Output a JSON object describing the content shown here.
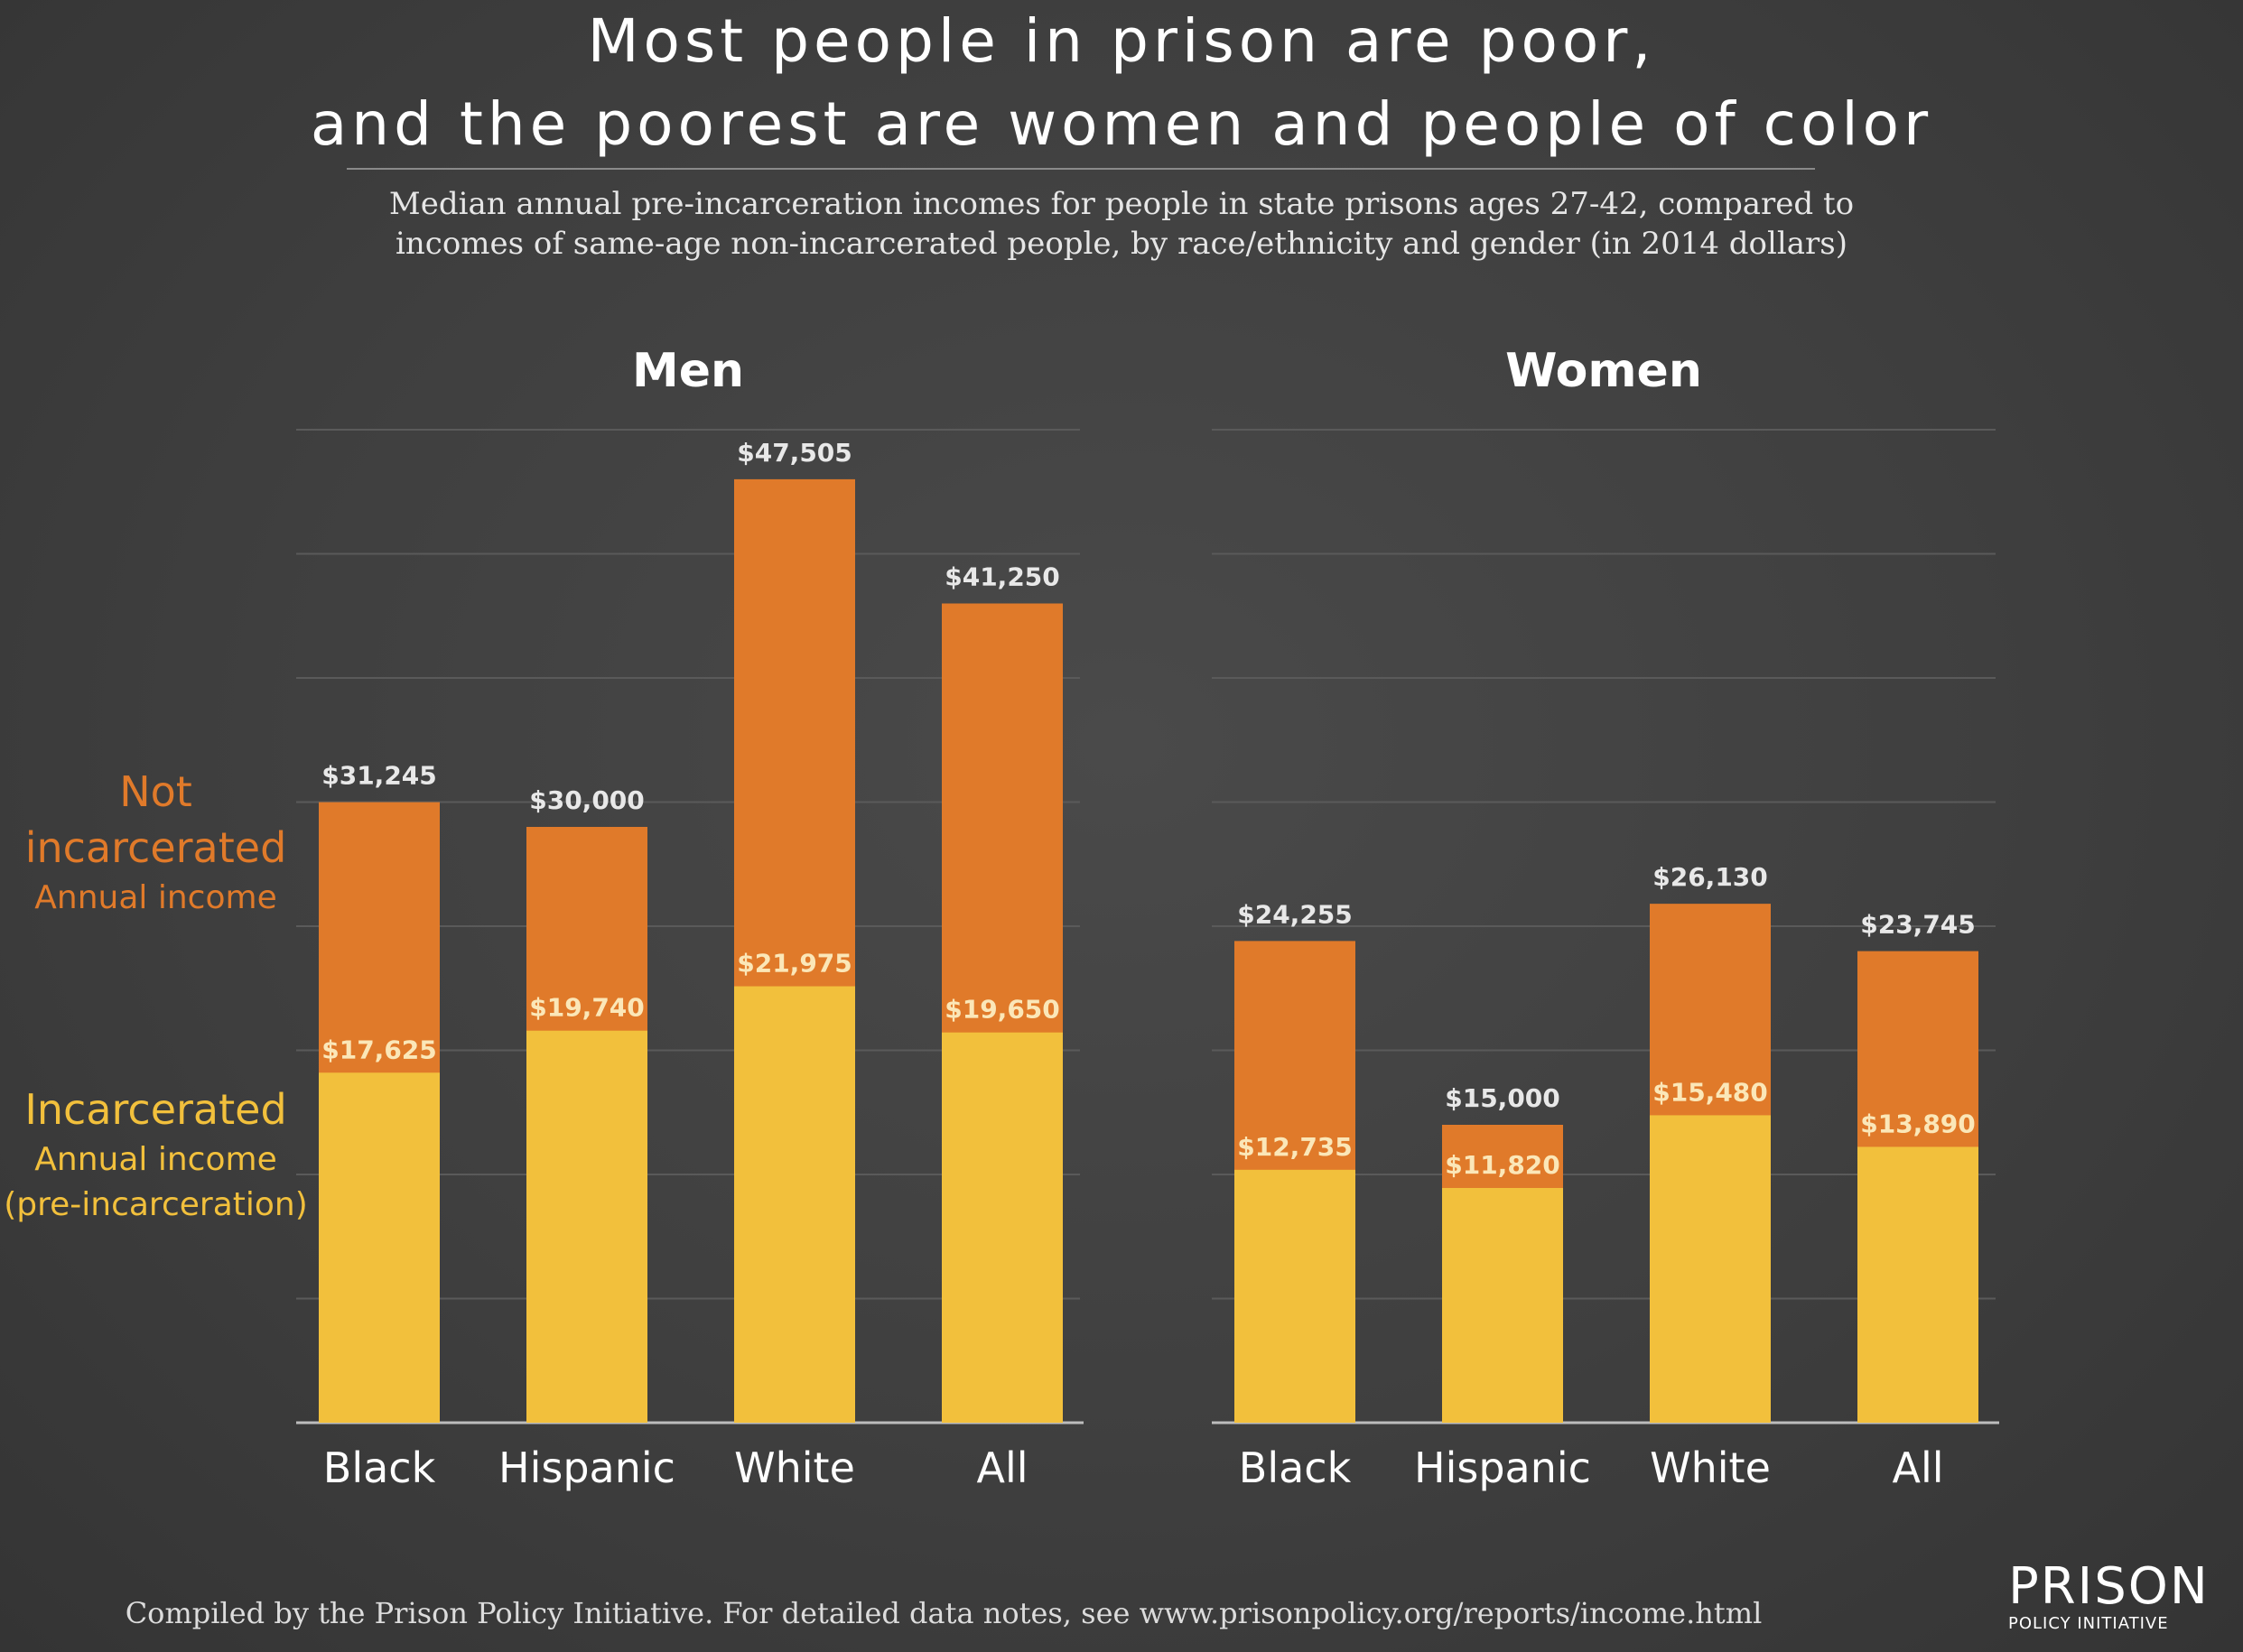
{
  "title_lines": [
    "Most people in prison are poor,",
    "and the poorest are women and people of color"
  ],
  "subtitle_lines": [
    "Median annual pre-incarceration incomes for people in state prisons ages 27-42, compared to",
    "incomes of same-age non-incarcerated people, by race/ethnicity and gender (in 2014 dollars)"
  ],
  "legend": {
    "not_incarcerated": {
      "lines": [
        "Not",
        "incarcerated"
      ],
      "sub": "Annual income",
      "color": "#e07a2a"
    },
    "incarcerated": {
      "lines": [
        "Incarcerated"
      ],
      "sub_lines": [
        "Annual income",
        "(pre-incarceration)"
      ],
      "color": "#f2c03c"
    }
  },
  "footer": "Compiled by the Prison Policy Initiative. For detailed data notes, see www.prisonpolicy.org/reports/income.html",
  "logo": {
    "big": "PRISON",
    "small": "POLICY INITIATIVE"
  },
  "chart_data": [
    {
      "type": "bar",
      "title": "Men",
      "categories": [
        "Black",
        "Hispanic",
        "White",
        "All"
      ],
      "series": [
        {
          "name": "Not incarcerated",
          "values": [
            31245,
            30000,
            47505,
            41250
          ],
          "labels": [
            "$31,245",
            "$30,000",
            "$47,505",
            "$41,250"
          ],
          "color": "#e07a2a"
        },
        {
          "name": "Incarcerated",
          "values": [
            17625,
            19740,
            21975,
            19650
          ],
          "labels": [
            "$17,625",
            "$19,740",
            "$21,975",
            "$19,650"
          ],
          "color": "#f2c03c"
        }
      ],
      "ylim": [
        0,
        50000
      ],
      "grid": true
    },
    {
      "type": "bar",
      "title": "Women",
      "categories": [
        "Black",
        "Hispanic",
        "White",
        "All"
      ],
      "series": [
        {
          "name": "Not incarcerated",
          "values": [
            24255,
            15000,
            26130,
            23745
          ],
          "labels": [
            "$24,255",
            "$15,000",
            "$26,130",
            "$23,745"
          ],
          "color": "#e07a2a"
        },
        {
          "name": "Incarcerated",
          "values": [
            12735,
            11820,
            15480,
            13890
          ],
          "labels": [
            "$12,735",
            "$11,820",
            "$15,480",
            "$13,890"
          ],
          "color": "#f2c03c"
        }
      ],
      "ylim": [
        0,
        50000
      ],
      "grid": true
    }
  ]
}
